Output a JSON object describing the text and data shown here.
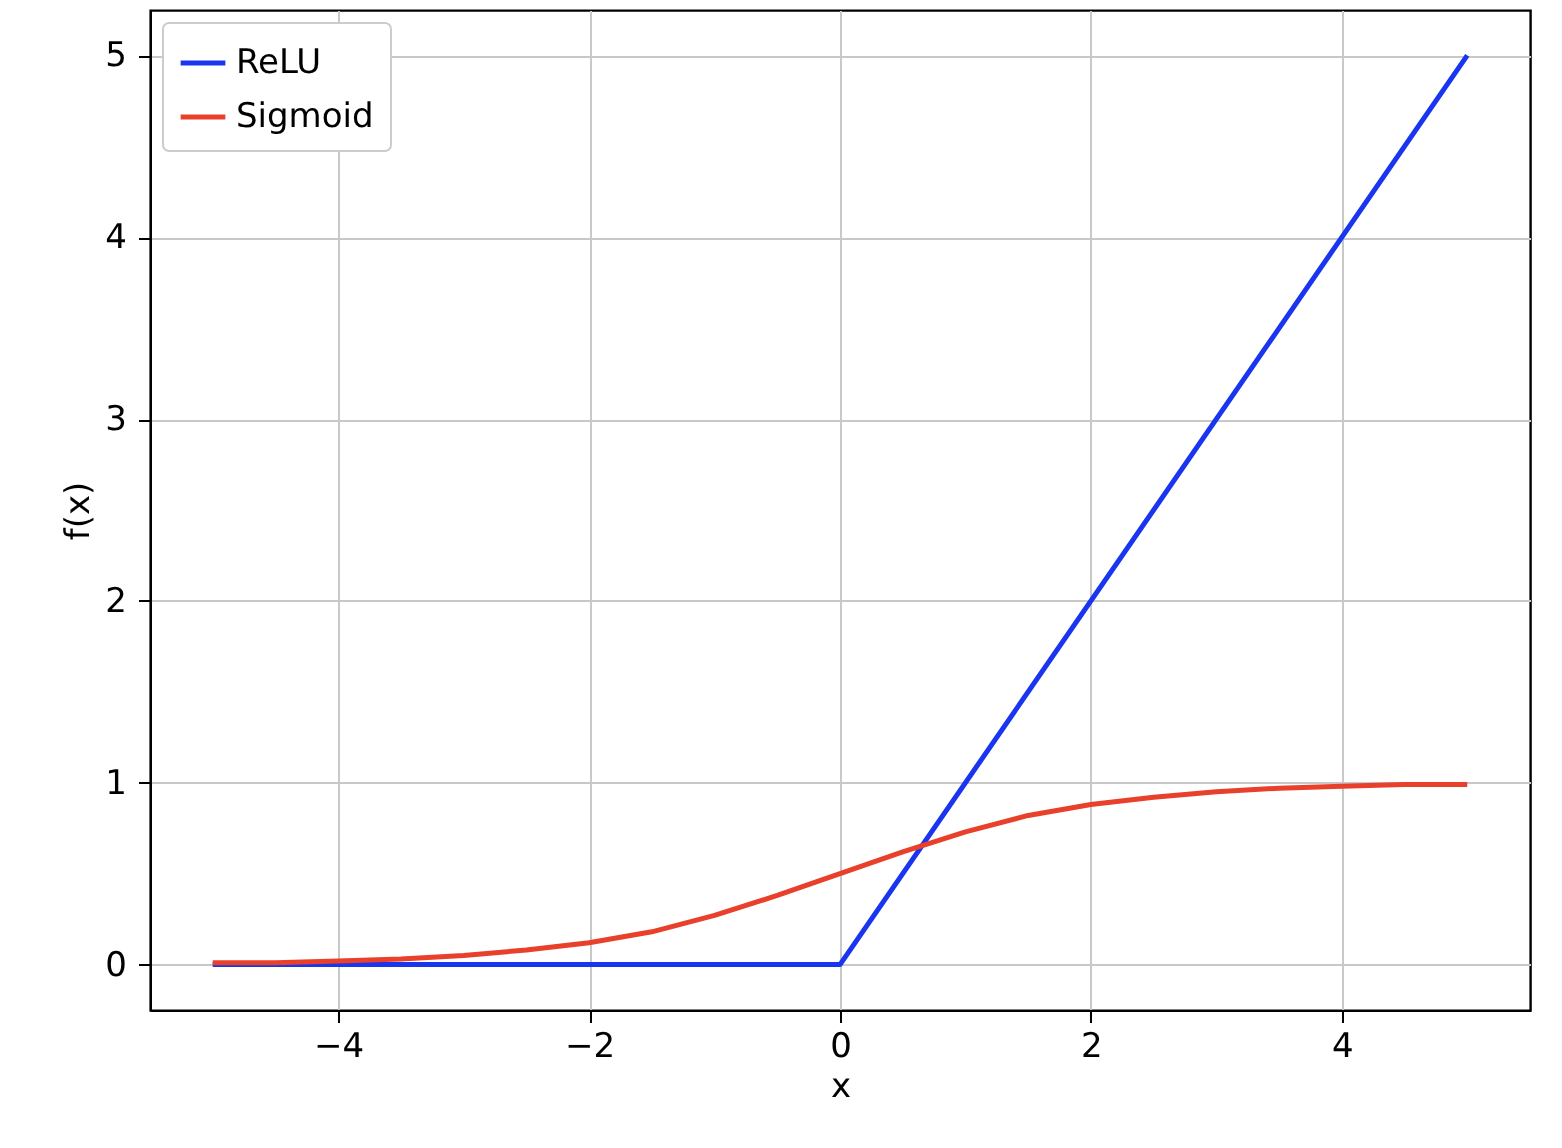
{
  "chart_data": {
    "type": "line",
    "xlabel": "x",
    "ylabel": "f(x)",
    "xlim": [
      -5.5,
      5.5
    ],
    "ylim": [
      -0.25,
      5.25
    ],
    "xticks": [
      -4,
      -2,
      0,
      2,
      4
    ],
    "yticks": [
      0,
      1,
      2,
      3,
      4,
      5
    ],
    "grid": true,
    "legend": "top left",
    "series": [
      {
        "name": "ReLU",
        "color": "#1a35f0",
        "x": [
          -5,
          0,
          5
        ],
        "values": [
          0,
          0,
          5
        ]
      },
      {
        "name": "Sigmoid",
        "color": "#e8402a",
        "x": [
          -5,
          -4.5,
          -4,
          -3.5,
          -3,
          -2.5,
          -2,
          -1.5,
          -1,
          -0.5,
          0,
          0.5,
          1,
          1.5,
          2,
          2.5,
          3,
          3.5,
          4,
          4.5,
          5
        ],
        "values": [
          0.01,
          0.01,
          0.02,
          0.03,
          0.05,
          0.08,
          0.12,
          0.18,
          0.27,
          0.38,
          0.5,
          0.62,
          0.73,
          0.82,
          0.88,
          0.92,
          0.95,
          0.97,
          0.98,
          0.99,
          0.99
        ]
      }
    ]
  }
}
